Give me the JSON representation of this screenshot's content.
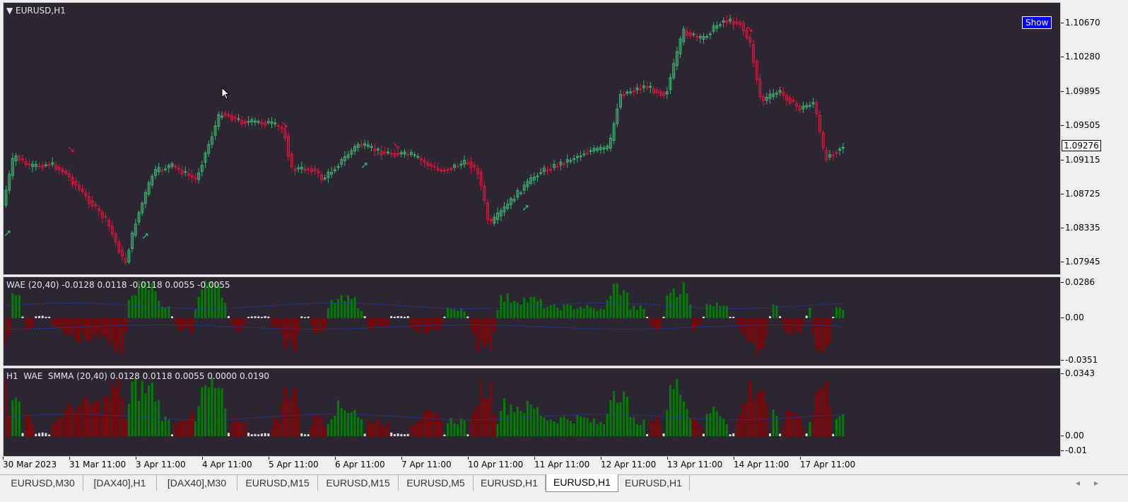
{
  "chart": {
    "symbol_label": "EURUSD,H1",
    "show_button": "Show",
    "current_price": "1.09276",
    "price_ticks": [
      "1.10670",
      "1.10280",
      "1.09895",
      "1.09505",
      "1.09115",
      "1.08725",
      "1.08335",
      "1.07945"
    ],
    "bull_color": "#3cb371",
    "bear_color": "#dc143c"
  },
  "wae": {
    "label": "WAE (20,40) -0.0128 0.0118 -0.0118 0.0055 -0.0055",
    "ticks": [
      "0.0286",
      "0.00",
      "-0.0351"
    ],
    "up_color": "#008000",
    "down_color": "#8b0000",
    "neutral_color": "#dcdcdc",
    "line_color": "#1e3cc8"
  },
  "smma": {
    "label": "H1  WAE  SMMA (20,40) 0.0128 0.0118 0.0055 0.0000 0.0190",
    "ticks": [
      "0.0343",
      "0.00",
      "-0.01"
    ]
  },
  "time_axis": [
    "30 Mar 2023",
    "31 Mar 11:00",
    "3 Apr 11:00",
    "4 Apr 11:00",
    "5 Apr 11:00",
    "6 Apr 11:00",
    "7 Apr 11:00",
    "10 Apr 11:00",
    "11 Apr 11:00",
    "12 Apr 11:00",
    "13 Apr 11:00",
    "14 Apr 11:00",
    "17 Apr 11:00"
  ],
  "tabs": [
    {
      "label": "EURUSD,M30",
      "active": false
    },
    {
      "label": "[DAX40],H1",
      "active": false
    },
    {
      "label": "[DAX40],M30",
      "active": false
    },
    {
      "label": "EURUSD,M15",
      "active": false
    },
    {
      "label": "EURUSD,M15",
      "active": false
    },
    {
      "label": "EURUSD,M5",
      "active": false
    },
    {
      "label": "EURUSD,H1",
      "active": false
    },
    {
      "label": "EURUSD,H1",
      "active": true
    },
    {
      "label": "EURUSD,H1",
      "active": false
    }
  ],
  "nav": {
    "left": "◂",
    "right": "▸"
  }
}
